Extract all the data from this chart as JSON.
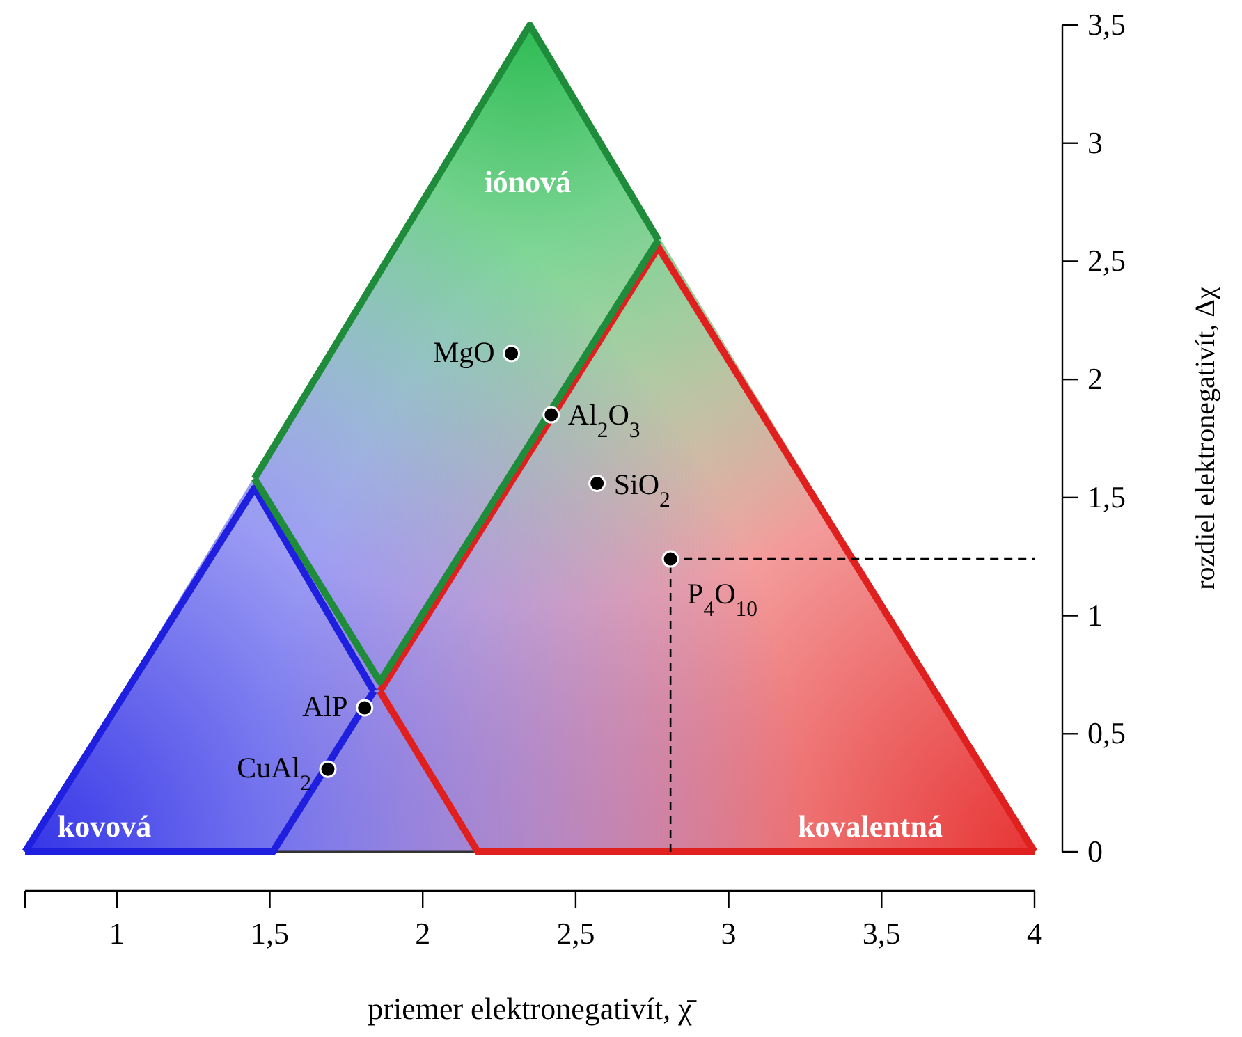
{
  "chart_data": {
    "type": "scatter",
    "xlabel": "priemer elektronegativít, χ̄",
    "ylabel": "rozdiel elektronegativít, Δχ",
    "xlim": [
      0.7,
      4
    ],
    "ylim": [
      0,
      3.5
    ],
    "xticks": [
      {
        "value": 0.7,
        "label": null
      },
      1,
      {
        "value": 1.5,
        "label": "1,5"
      },
      2,
      {
        "value": 2.5,
        "label": "2,5"
      },
      3,
      {
        "value": 3.5,
        "label": "3,5"
      },
      4
    ],
    "yticks": [
      0,
      {
        "value": 0.5,
        "label": "0,5"
      },
      1,
      {
        "value": 1.5,
        "label": "1,5"
      },
      2,
      {
        "value": 2.5,
        "label": "2,5"
      },
      3,
      {
        "value": 3.5,
        "label": "3,5"
      }
    ],
    "series": [
      {
        "type": "line",
        "color": "#333333",
        "x": [
          1.51,
          2.18
        ],
        "values": [
          0,
          0
        ],
        "marker": "none",
        "line_style": "solid"
      },
      {
        "type": "line",
        "color": "#1f1fe0",
        "x": [
          0.7,
          1.45,
          1.84
        ],
        "values": [
          0,
          1.54,
          0.68
        ],
        "marker": "none",
        "line_style": "solid"
      },
      {
        "type": "line",
        "color": "#1f1fe0",
        "x": [
          0.7,
          1.51,
          1.84
        ],
        "values": [
          0,
          0,
          0.68
        ],
        "marker": "none",
        "line_style": "solid"
      },
      {
        "type": "line",
        "color": "#e01f1f",
        "x": [
          1.86,
          2.77,
          4
        ],
        "values": [
          0.68,
          2.56,
          0
        ],
        "marker": "none",
        "line_style": "solid"
      },
      {
        "type": "line",
        "color": "#e01f1f",
        "x": [
          1.86,
          2.18,
          4
        ],
        "values": [
          0.68,
          0,
          0
        ],
        "marker": "none",
        "line_style": "solid"
      },
      {
        "type": "line",
        "color": "#1e8c3a",
        "x": [
          1.45,
          2.35,
          2.77
        ],
        "values": [
          1.58,
          3.5,
          2.59
        ],
        "marker": "none",
        "line_style": "solid"
      },
      {
        "type": "line",
        "color": "#1e8c3a",
        "x": [
          1.45,
          1.86,
          2.77
        ],
        "values": [
          1.58,
          0.72,
          2.59
        ],
        "marker": "none",
        "line_style": "solid"
      },
      {
        "type": "line",
        "color": "#000000",
        "x": [
          2.81,
          2.81,
          4
        ],
        "values": [
          0,
          1.24,
          1.24
        ],
        "marker": "none",
        "line_style": "dashed"
      },
      {
        "color": "#000000",
        "x": [
          2.29,
          2.42,
          2.57,
          2.81,
          1.81,
          1.69
        ],
        "values": [
          2.11,
          1.85,
          1.56,
          1.24,
          0.61,
          0.35
        ],
        "marker": "circle"
      }
    ],
    "annotations": [
      {
        "text": "MgO",
        "x": 2.29,
        "y": 2.11
      },
      {
        "text": "Al$_{2}$O$_{3}$",
        "x": 2.42,
        "y": 1.85
      },
      {
        "text": "SiO$_{2}$",
        "x": 2.57,
        "y": 1.56
      },
      {
        "text": "P$_{4}$O$_{10}$",
        "x": 2.81,
        "y": 1.24
      },
      {
        "text": "AlP",
        "x": 1.81,
        "y": 0.61
      },
      {
        "text": "CuAl$_{2}$",
        "x": 1.69,
        "y": 0.35
      },
      "iónová",
      "kovová",
      "kovalentná"
    ]
  }
}
